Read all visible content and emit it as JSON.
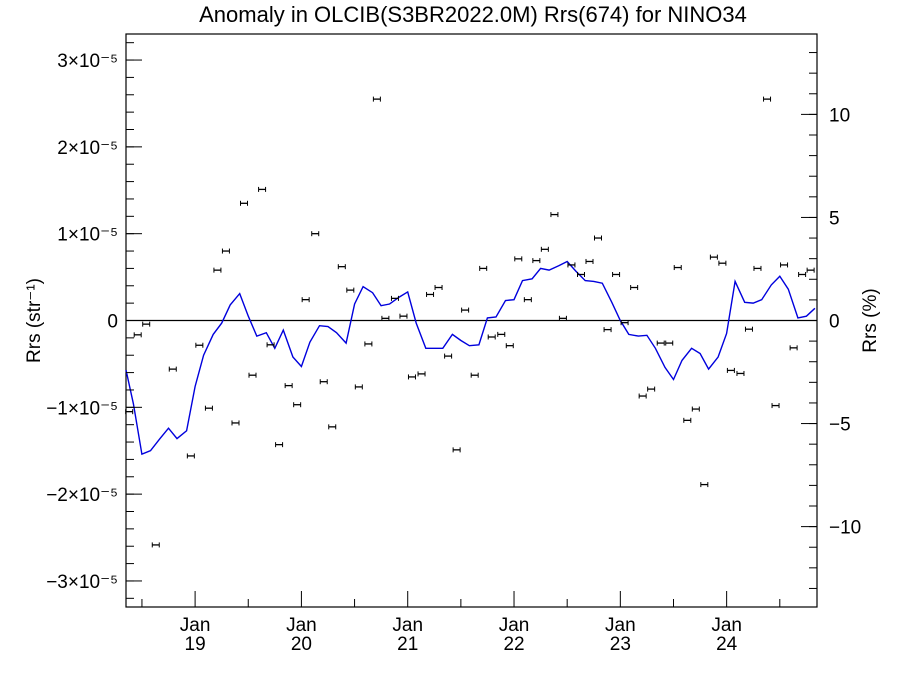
{
  "chart_data": {
    "type": "scatter",
    "title": "Anomaly in OLCIB(S3BR2022.0M) Rrs(674) for NINO34",
    "ylabel": "Rrs (str⁻¹)",
    "y2label": "Rrs (%)",
    "ylim": [
      -3.3e-05,
      3.3e-05
    ],
    "y2lim": [
      -13.9,
      13.9
    ],
    "xlim_years": [
      2018.35,
      2024.85
    ],
    "y_ticks": [
      {
        "v": 3e-05,
        "label": "3×10⁻⁵"
      },
      {
        "v": 2e-05,
        "label": "2×10⁻⁵"
      },
      {
        "v": 1e-05,
        "label": "1×10⁻⁵"
      },
      {
        "v": 0,
        "label": "0"
      },
      {
        "v": -1e-05,
        "label": "−1×10⁻⁵"
      },
      {
        "v": -2e-05,
        "label": "−2×10⁻⁵"
      },
      {
        "v": -3e-05,
        "label": "−3×10⁻⁵"
      }
    ],
    "y2_ticks": [
      {
        "v": 10,
        "label": "10"
      },
      {
        "v": 5,
        "label": "5"
      },
      {
        "v": 0,
        "label": "0"
      },
      {
        "v": -5,
        "label": "−5"
      },
      {
        "v": -10,
        "label": "−10"
      }
    ],
    "x_ticks": [
      {
        "v": 2019,
        "month": "Jan",
        "year": "19"
      },
      {
        "v": 2020,
        "month": "Jan",
        "year": "20"
      },
      {
        "v": 2021,
        "month": "Jan",
        "year": "21"
      },
      {
        "v": 2022,
        "month": "Jan",
        "year": "22"
      },
      {
        "v": 2023,
        "month": "Jan",
        "year": "23"
      },
      {
        "v": 2024,
        "month": "Jan",
        "year": "24"
      }
    ],
    "points_x": [
      2018.38,
      2018.46,
      2018.54,
      2018.63,
      2018.79,
      2018.96,
      2019.04,
      2019.13,
      2019.21,
      2019.29,
      2019.38,
      2019.46,
      2019.54,
      2019.63,
      2019.71,
      2019.79,
      2019.88,
      2019.96,
      2020.04,
      2020.13,
      2020.21,
      2020.29,
      2020.38,
      2020.46,
      2020.54,
      2020.63,
      2020.71,
      2020.79,
      2020.88,
      2020.96,
      2021.04,
      2021.13,
      2021.21,
      2021.29,
      2021.38,
      2021.46,
      2021.54,
      2021.63,
      2021.71,
      2021.79,
      2021.88,
      2021.96,
      2022.04,
      2022.13,
      2022.21,
      2022.29,
      2022.38,
      2022.46,
      2022.54,
      2022.63,
      2022.71,
      2022.79,
      2022.88,
      2022.96,
      2023.04,
      2023.13,
      2023.21,
      2023.29,
      2023.38,
      2023.46,
      2023.54,
      2023.63,
      2023.71,
      2023.79,
      2023.88,
      2023.96,
      2024.04,
      2024.13,
      2024.21,
      2024.29,
      2024.38,
      2024.46,
      2024.54,
      2024.63,
      2024.71,
      2024.79
    ],
    "points_y": [
      -1.05e-05,
      -1.65e-06,
      -4.2e-07,
      -2.585e-05,
      -5.6e-06,
      -1.56e-05,
      -2.85e-06,
      -1.01e-05,
      5.8e-06,
      8e-06,
      -1.18e-05,
      1.35e-05,
      -6.3e-06,
      1.51e-05,
      -2.8e-06,
      -1.43e-05,
      -7.5e-06,
      -9.7e-06,
      2.4e-06,
      1e-05,
      -7.05e-06,
      -1.225e-05,
      6.2e-06,
      3.5e-06,
      -7.65e-06,
      -2.7e-06,
      2.55e-05,
      2.5e-07,
      2.55e-06,
      5e-07,
      -6.5e-06,
      -6.15e-06,
      3e-06,
      3.8e-06,
      -4.1e-06,
      -1.49e-05,
      1.2e-06,
      -6.3e-06,
      6e-06,
      -1.9e-06,
      -1.6e-06,
      -2.9e-06,
      7.1e-06,
      2.4e-06,
      6.9e-06,
      8.2e-06,
      1.22e-05,
      2.5e-07,
      6.4e-06,
      5.3e-06,
      6.8e-06,
      9.5e-06,
      -1.05e-06,
      5.3e-06,
      -2.5e-07,
      3.8e-06,
      -8.7e-06,
      -7.9e-06,
      -2.6e-06,
      -2.6e-06,
      6.1e-06,
      -1.15e-05,
      -1.02e-05,
      -1.89e-05,
      7.3e-06,
      6.6e-06,
      -5.75e-06,
      -6.1e-06,
      -1e-06,
      6e-06,
      2.55e-05,
      -9.8e-06,
      6.4e-06,
      -3.15e-06,
      5.3e-06,
      5.8e-06
    ],
    "line_x": [
      2018.35,
      2018.42,
      2018.5,
      2018.58,
      2018.67,
      2018.75,
      2018.83,
      2018.92,
      2019,
      2019.08,
      2019.17,
      2019.25,
      2019.33,
      2019.42,
      2019.5,
      2019.58,
      2019.67,
      2019.75,
      2019.83,
      2019.92,
      2020,
      2020.08,
      2020.17,
      2020.25,
      2020.33,
      2020.42,
      2020.5,
      2020.58,
      2020.67,
      2020.75,
      2020.83,
      2020.92,
      2021,
      2021.08,
      2021.17,
      2021.25,
      2021.33,
      2021.42,
      2021.5,
      2021.58,
      2021.67,
      2021.75,
      2021.83,
      2021.92,
      2022,
      2022.08,
      2022.17,
      2022.25,
      2022.33,
      2022.42,
      2022.5,
      2022.58,
      2022.67,
      2022.75,
      2022.83,
      2022.92,
      2023,
      2023.08,
      2023.17,
      2023.25,
      2023.33,
      2023.42,
      2023.5,
      2023.58,
      2023.67,
      2023.75,
      2023.83,
      2023.92,
      2024,
      2024.08,
      2024.17,
      2024.25,
      2024.33,
      2024.42,
      2024.5,
      2024.58,
      2024.67,
      2024.75,
      2024.83
    ],
    "line_y": [
      -5.7e-06,
      -9.6e-06,
      -1.54e-05,
      -1.5e-05,
      -1.36e-05,
      -1.24e-05,
      -1.36e-05,
      -1.27e-05,
      -7.6e-06,
      -4e-06,
      -1.6e-06,
      -3e-07,
      1.8e-06,
      3.1e-06,
      5e-07,
      -1.8e-06,
      -1.4e-06,
      -3.2e-06,
      -1.1e-06,
      -4.2e-06,
      -5.3e-06,
      -2.5e-06,
      -6e-07,
      -7e-07,
      -1.4e-06,
      -2.6e-06,
      1.9e-06,
      3.9e-06,
      3.2e-06,
      1.7e-06,
      1.9e-06,
      2.7e-06,
      3.3e-06,
      -3e-07,
      -3.2e-06,
      -3.2e-06,
      -3.2e-06,
      -1.6e-06,
      -2.3e-06,
      -2.9e-06,
      -2.8e-06,
      3e-07,
      4e-07,
      2.3e-06,
      2.4e-06,
      4.6e-06,
      4.8e-06,
      6e-06,
      5.8e-06,
      6.3e-06,
      6.8e-06,
      5.7e-06,
      4.6e-06,
      4.5e-06,
      4.3e-06,
      2.1e-06,
      0,
      -1.6e-06,
      -1.8e-06,
      -1.7e-06,
      -3.2e-06,
      -5.4e-06,
      -6.8e-06,
      -4.6e-06,
      -3.2e-06,
      -3.8e-06,
      -5.6e-06,
      -4.2e-06,
      -1.5e-06,
      4.5e-06,
      2.1e-06,
      2e-06,
      2.4e-06,
      4.1e-06,
      5.1e-06,
      3.6e-06,
      3e-07,
      5e-07,
      1.4e-06
    ],
    "colors": {
      "line": "#0000dd",
      "points": "#000000",
      "axes": "#000000",
      "zero_line": "#000000"
    }
  }
}
